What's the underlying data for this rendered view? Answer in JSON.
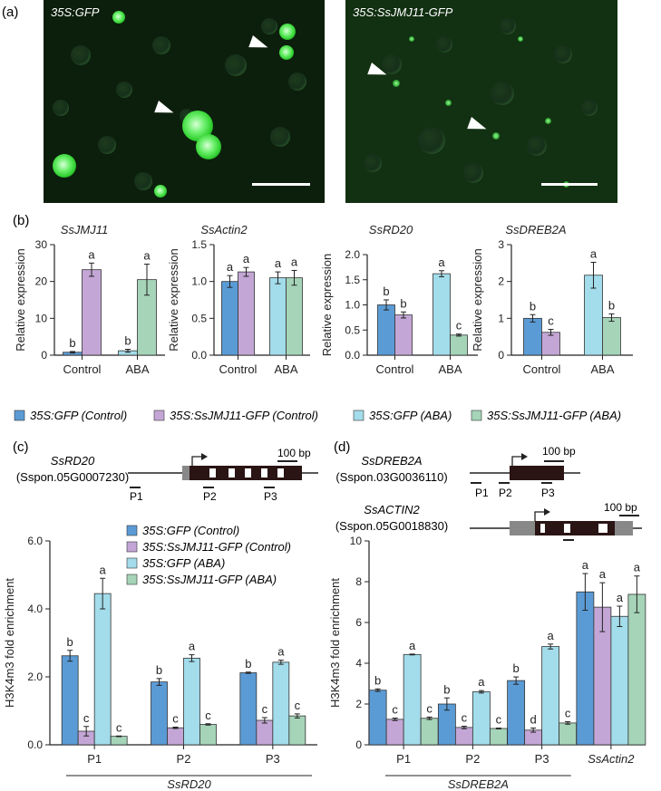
{
  "panels": {
    "a": "(a)",
    "b": "(b)",
    "c": "(c)",
    "d": "(d)"
  },
  "micrographs": [
    {
      "label": "35S:GFP"
    },
    {
      "label": "35S:SsJMJ11-GFP"
    }
  ],
  "legend_b": [
    "35S:GFP (Control)",
    "35S:SsJMJ11-GFP (Control)",
    "35S:GFP (ABA)",
    "35S:SsJMJ11-GFP  (ABA)"
  ],
  "legend_c": [
    "35S:GFP (Control)",
    "35S:SsJMJ11-GFP (Control)",
    "35S:GFP (ABA)",
    "35S:SsJMJ11-GFP  (ABA)"
  ],
  "colors": {
    "gfp_control": "#5b9bd5",
    "jmj_control": "#c3a6d6",
    "gfp_aba": "#a3dcea",
    "jmj_aba": "#a5d4b9"
  },
  "gene_structures": {
    "c": {
      "gene": "SsRD20",
      "locus": "(Sspon.05G0007230)",
      "scale": "100 bp",
      "primers": [
        "P1",
        "P2",
        "P3"
      ]
    },
    "d1": {
      "gene": "SsDREB2A",
      "locus": "(Sspon.03G0036110)",
      "scale": "100 bp",
      "primers": [
        "P1",
        "P2",
        "P3"
      ]
    },
    "d2": {
      "gene": "SsACTIN2",
      "locus": "(Sspon.05G0018830)",
      "scale": "100 bp"
    }
  },
  "chart_data": [
    {
      "type": "bar",
      "title": "SsJMJ11",
      "ylabel": "Relative expression",
      "categories": [
        "Control",
        "ABA"
      ],
      "ylim": [
        0,
        30
      ],
      "yticks": [
        0,
        10,
        20,
        30
      ],
      "series": [
        {
          "values": [
            0.8,
            1.2
          ],
          "errors": [
            0.2,
            0.4
          ],
          "letters": [
            "b",
            "b"
          ]
        },
        {
          "values": [
            23.2,
            20.5
          ],
          "errors": [
            1.8,
            4.2
          ],
          "letters": [
            "a",
            "a"
          ]
        }
      ]
    },
    {
      "type": "bar",
      "title": "SsActin2",
      "ylabel": "Relative expression",
      "categories": [
        "Control",
        "ABA"
      ],
      "ylim": [
        0,
        1.5
      ],
      "yticks": [
        0.0,
        0.5,
        1.0,
        1.5
      ],
      "series": [
        {
          "values": [
            1.0,
            1.05
          ],
          "errors": [
            0.08,
            0.08
          ],
          "letters": [
            "a",
            "a"
          ]
        },
        {
          "values": [
            1.13,
            1.05
          ],
          "errors": [
            0.06,
            0.1
          ],
          "letters": [
            "a",
            "a"
          ]
        }
      ]
    },
    {
      "type": "bar",
      "title": "SsRD20",
      "ylabel": "Relative expression",
      "categories": [
        "Control",
        "ABA"
      ],
      "ylim": [
        0,
        2.0
      ],
      "yticks": [
        0.0,
        0.5,
        1.0,
        1.5,
        2.0
      ],
      "series": [
        {
          "values": [
            1.0,
            1.62
          ],
          "errors": [
            0.1,
            0.06
          ],
          "letters": [
            "b",
            "a"
          ]
        },
        {
          "values": [
            0.8,
            0.4
          ],
          "errors": [
            0.06,
            0.02
          ],
          "letters": [
            "b",
            "c"
          ]
        }
      ]
    },
    {
      "type": "bar",
      "title": "SsDREB2A",
      "ylabel": "Relative expression",
      "categories": [
        "Control",
        "ABA"
      ],
      "ylim": [
        0,
        3
      ],
      "yticks": [
        0,
        1,
        2,
        3
      ],
      "series": [
        {
          "values": [
            1.0,
            2.17
          ],
          "errors": [
            0.1,
            0.35
          ],
          "letters": [
            "b",
            "a"
          ]
        },
        {
          "values": [
            0.62,
            1.02
          ],
          "errors": [
            0.08,
            0.1
          ],
          "letters": [
            "c",
            "b"
          ]
        }
      ]
    },
    {
      "type": "bar",
      "ylabel": "H3K4m3 fold enrichment",
      "xgroup_label": "SsRD20",
      "categories": [
        "P1",
        "P2",
        "P3"
      ],
      "ylim": [
        0,
        6.0
      ],
      "yticks": [
        0.0,
        2.0,
        4.0,
        6.0
      ],
      "series": [
        {
          "name": "35S:GFP (Control)",
          "values": [
            2.62,
            1.85,
            2.12
          ],
          "errors": [
            0.16,
            0.1,
            0.02
          ],
          "letters": [
            "b",
            "b",
            "b"
          ]
        },
        {
          "name": "35S:SsJMJ11-GFP (Control)",
          "values": [
            0.4,
            0.5,
            0.72
          ],
          "errors": [
            0.14,
            0.02,
            0.08
          ],
          "letters": [
            "c",
            "c",
            "c"
          ]
        },
        {
          "name": "35S:GFP (ABA)",
          "values": [
            4.45,
            2.55,
            2.43
          ],
          "errors": [
            0.45,
            0.1,
            0.06
          ],
          "letters": [
            "a",
            "a",
            "a"
          ]
        },
        {
          "name": "35S:SsJMJ11-GFP  (ABA)",
          "values": [
            0.25,
            0.6,
            0.85
          ],
          "errors": [
            0.01,
            0.02,
            0.06
          ],
          "letters": [
            "c",
            "c",
            "c"
          ]
        }
      ]
    },
    {
      "type": "bar",
      "ylabel": "H3K4m3 fold enrichment",
      "xgroup_label": "SsDREB2A",
      "categories": [
        "P1",
        "P2",
        "P3",
        "SsActin2"
      ],
      "ylim": [
        0,
        10
      ],
      "yticks": [
        0,
        2,
        4,
        6,
        8,
        10
      ],
      "series": [
        {
          "name": "35S:GFP (Control)",
          "values": [
            2.68,
            2.0,
            3.15,
            7.5
          ],
          "errors": [
            0.06,
            0.3,
            0.18,
            0.9
          ],
          "letters": [
            "b",
            "b",
            "b",
            "a"
          ]
        },
        {
          "name": "35S:SsJMJ11-GFP (Control)",
          "values": [
            1.25,
            0.85,
            0.72,
            6.75
          ],
          "errors": [
            0.06,
            0.06,
            0.1,
            1.2
          ],
          "letters": [
            "c",
            "c",
            "d",
            "a"
          ]
        },
        {
          "name": "35S:GFP (ABA)",
          "values": [
            4.43,
            2.6,
            4.82,
            6.3
          ],
          "errors": [
            0.02,
            0.06,
            0.12,
            0.5
          ],
          "letters": [
            "a",
            "a",
            "a",
            "a"
          ]
        },
        {
          "name": "35S:SsJMJ11-GFP  (ABA)",
          "values": [
            1.3,
            0.8,
            1.07,
            7.38
          ],
          "errors": [
            0.06,
            0.02,
            0.06,
            0.9
          ],
          "letters": [
            "c",
            "c",
            "c",
            "a"
          ]
        }
      ]
    }
  ]
}
